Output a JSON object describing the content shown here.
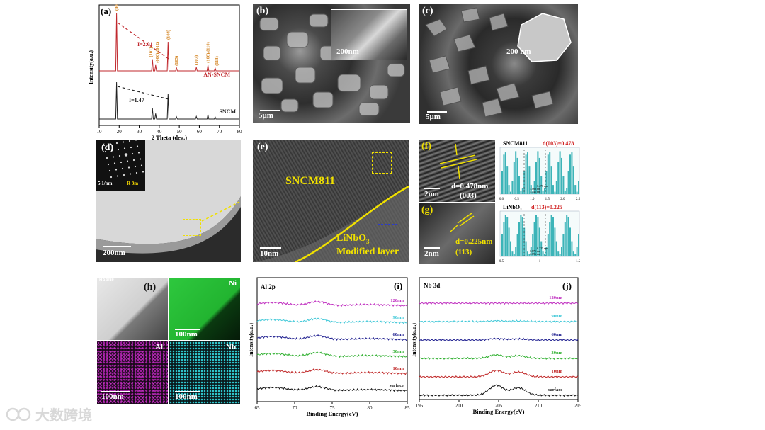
{
  "panel_a": {
    "label": "(a)",
    "chart_data": {
      "type": "line",
      "xlabel": "2 Theta (deg.)",
      "ylabel": "Intensity(a.u.)",
      "xlim": [
        10,
        80
      ],
      "xticks": [
        10,
        20,
        30,
        40,
        50,
        60,
        70,
        80
      ],
      "series": [
        {
          "name": "AN-SNCM",
          "color": "#c0282d",
          "peaks": [
            [
              18.7,
              1.0
            ],
            [
              36.6,
              0.2
            ],
            [
              38.2,
              0.1
            ],
            [
              44.4,
              0.5
            ],
            [
              48.6,
              0.05
            ],
            [
              58.5,
              0.06
            ],
            [
              64.3,
              0.1
            ],
            [
              67.9,
              0.05
            ]
          ]
        },
        {
          "name": "SNCM",
          "color": "#222222",
          "peaks": [
            [
              18.7,
              1.0
            ],
            [
              36.6,
              0.3
            ],
            [
              38.2,
              0.15
            ],
            [
              44.4,
              0.68
            ],
            [
              48.6,
              0.06
            ],
            [
              58.5,
              0.07
            ],
            [
              64.3,
              0.12
            ],
            [
              67.9,
              0.06
            ]
          ]
        }
      ],
      "annotations": [
        {
          "text": "I=2.01",
          "series": "AN-SNCM",
          "color": "#c0282d"
        },
        {
          "text": "I=1.47",
          "series": "SNCM",
          "color": "#222222"
        }
      ],
      "peak_labels": [
        "(003)",
        "(101)",
        "(006)/(012)",
        "(104)",
        "(105)",
        "(107)",
        "(108)/(110)",
        "(113)"
      ]
    }
  },
  "panel_b": {
    "label": "(b)",
    "inset_scale": "200nm",
    "scale": "5μm"
  },
  "panel_c": {
    "label": "(c)",
    "inset_scale": "200 nm",
    "scale": "5μm"
  },
  "panel_d": {
    "label": "(d)",
    "inset_scale": "5 1/nm",
    "inset_text": "R 3m",
    "scale": "200nm"
  },
  "panel_e": {
    "label": "(e)",
    "text1": "SNCM811",
    "text2": "LiNbO",
    "text2_sub": "3",
    "text3": "Modified layer",
    "scale": "10nm"
  },
  "panel_f": {
    "label": "(f)",
    "scale": "2nm",
    "d_text": "d=0.478nm",
    "plane": "(003)",
    "profile_title": "SNCM811",
    "profile_value": "d(003)=0.478",
    "profile_xticks": [
      "0.0",
      "0.5",
      "1.0",
      "1.5",
      "2.0",
      "2.5"
    ],
    "profile_notes": [
      "0.478 nm",
      "1.063 nm",
      "1.541 nm"
    ]
  },
  "panel_g": {
    "label": "(g)",
    "scale": "2nm",
    "d_text": "d=0.225nm",
    "plane": "(113)",
    "profile_title": "LiNbO",
    "profile_title_sub": "3",
    "profile_value": "d(113)=0.225",
    "profile_xticks": [
      "0.5",
      "1",
      "1.5"
    ],
    "profile_notes": [
      "0.225 nm",
      "0.871 nm",
      "1.096 nm"
    ]
  },
  "panel_h": {
    "label": "(h)",
    "tiles": [
      "HAADF",
      "Ni",
      "Al",
      "Nb"
    ],
    "scale": "100nm"
  },
  "panel_i": {
    "label": "(i)",
    "chart_data": {
      "type": "line",
      "title": "Al 2p",
      "xlabel": "Binding Energy(eV)",
      "ylabel": "Intensity(a.u.)",
      "xlim": [
        65,
        85
      ],
      "xticks": [
        65,
        70,
        75,
        80,
        85
      ],
      "series": [
        {
          "name": "120nm",
          "color": "#c030c0"
        },
        {
          "name": "90nm",
          "color": "#40c8d8"
        },
        {
          "name": "60nm",
          "color": "#202090"
        },
        {
          "name": "30nm",
          "color": "#30b030"
        },
        {
          "name": "10nm",
          "color": "#c02828"
        },
        {
          "name": "surface",
          "color": "#111111"
        }
      ]
    }
  },
  "panel_j": {
    "label": "(j)",
    "chart_data": {
      "type": "line",
      "title": "Nb 3d",
      "xlabel": "Binding Energy(eV)",
      "ylabel": "Intensity(a.u.)",
      "xlim": [
        195,
        215
      ],
      "xticks": [
        195,
        200,
        205,
        210,
        215
      ],
      "series": [
        {
          "name": "120nm",
          "color": "#c030c0"
        },
        {
          "name": "90nm",
          "color": "#40c8d8"
        },
        {
          "name": "60nm",
          "color": "#202090"
        },
        {
          "name": "30nm",
          "color": "#30b030"
        },
        {
          "name": "10nm",
          "color": "#c02828"
        },
        {
          "name": "surface",
          "color": "#111111"
        }
      ]
    }
  },
  "watermark": {
    "text": "大数跨境"
  }
}
